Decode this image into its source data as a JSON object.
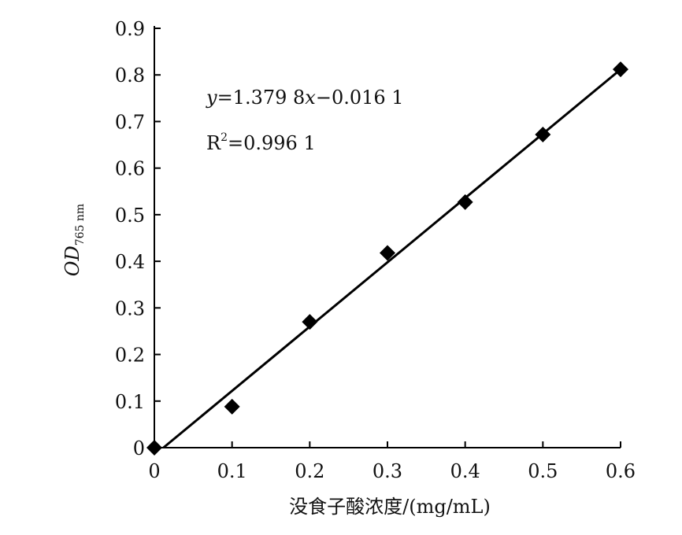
{
  "chart_data": {
    "type": "scatter",
    "xlabel": "没食子酸浓度/(mg/mL)",
    "ylabel": "OD",
    "ylabel_sub": "765 nm",
    "xlim": [
      0,
      0.6
    ],
    "ylim": [
      0,
      0.9
    ],
    "x_ticks": [
      "0",
      "0.1",
      "0.2",
      "0.3",
      "0.4",
      "0.5",
      "0.6"
    ],
    "y_ticks": [
      "0",
      "0.1",
      "0.2",
      "0.3",
      "0.4",
      "0.5",
      "0.6",
      "0.7",
      "0.8",
      "0.9"
    ],
    "grid": false,
    "series": [
      {
        "x": [
          0,
          0.1,
          0.2,
          0.3,
          0.4,
          0.5,
          0.6
        ],
        "y": [
          0.0,
          0.088,
          0.27,
          0.418,
          0.527,
          0.672,
          0.812
        ]
      }
    ],
    "trendline": {
      "slope": 1.3798,
      "intercept": -0.0161,
      "x_range": [
        0,
        0.6
      ]
    },
    "equation": "y=1.379 8x−0.016 1",
    "equation_parts": {
      "var_y": "y",
      "mid": "=1.379 8",
      "var_x": "x",
      "tail": "−0.016 1"
    },
    "r2_text": {
      "base": "R",
      "sup": "2",
      "rest": "=0.996 1"
    },
    "colors": {
      "marker": "#000000",
      "line": "#000000",
      "axis": "#000000"
    }
  }
}
